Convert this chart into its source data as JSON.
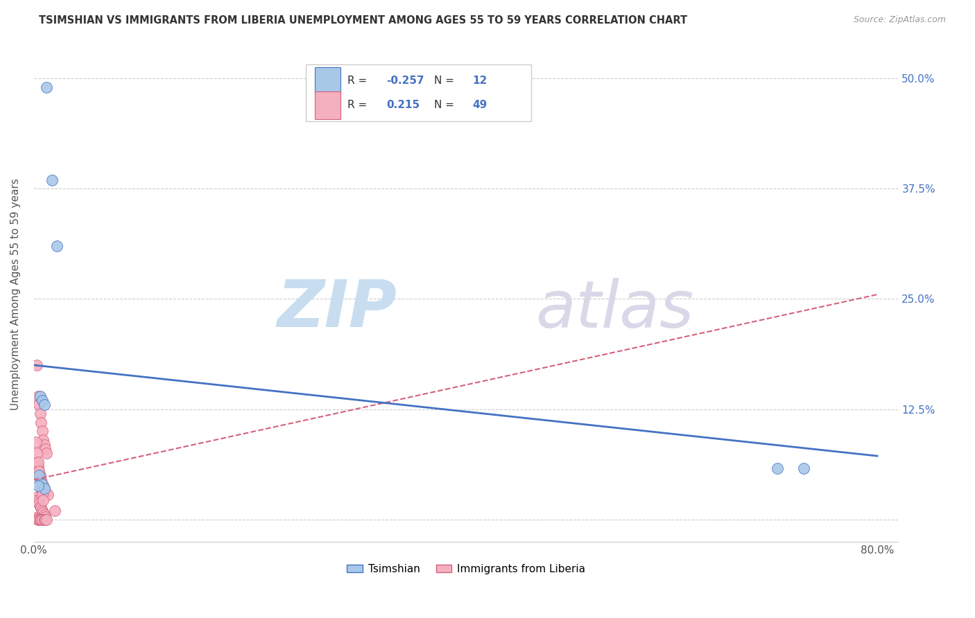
{
  "title": "TSIMSHIAN VS IMMIGRANTS FROM LIBERIA UNEMPLOYMENT AMONG AGES 55 TO 59 YEARS CORRELATION CHART",
  "source": "Source: ZipAtlas.com",
  "ylabel": "Unemployment Among Ages 55 to 59 years",
  "xlim": [
    0.0,
    0.82
  ],
  "ylim": [
    -0.025,
    0.535
  ],
  "xticks": [
    0.0,
    0.1,
    0.2,
    0.3,
    0.4,
    0.5,
    0.6,
    0.7,
    0.8
  ],
  "xticklabels": [
    "0.0%",
    "",
    "",
    "",
    "",
    "",
    "",
    "",
    "80.0%"
  ],
  "yticks": [
    0.0,
    0.125,
    0.25,
    0.375,
    0.5
  ],
  "yticklabels_right": [
    "",
    "12.5%",
    "25.0%",
    "37.5%",
    "50.0%"
  ],
  "tsimshian_color": "#a8c8e8",
  "liberia_color": "#f5b0c0",
  "tsimshian_line_color": "#4472c4",
  "liberia_line_color": "#d4607a",
  "background_color": "#ffffff",
  "grid_color": "#cccccc",
  "legend_R1": "-0.257",
  "legend_N1": "12",
  "legend_R2": "0.215",
  "legend_N2": "49",
  "tsimshian_x": [
    0.012,
    0.017,
    0.022,
    0.006,
    0.008,
    0.01,
    0.005,
    0.008,
    0.01,
    0.705,
    0.73,
    0.004
  ],
  "tsimshian_y": [
    0.49,
    0.385,
    0.31,
    0.14,
    0.135,
    0.13,
    0.05,
    0.04,
    0.035,
    0.058,
    0.058,
    0.038
  ],
  "liberia_x": [
    0.003,
    0.004,
    0.005,
    0.006,
    0.007,
    0.008,
    0.009,
    0.01,
    0.011,
    0.012,
    0.003,
    0.004,
    0.005,
    0.006,
    0.007,
    0.008,
    0.009,
    0.01,
    0.011,
    0.013,
    0.002,
    0.003,
    0.004,
    0.005,
    0.006,
    0.007,
    0.008,
    0.009,
    0.01,
    0.011,
    0.002,
    0.003,
    0.004,
    0.005,
    0.006,
    0.007,
    0.008,
    0.01,
    0.011,
    0.012,
    0.002,
    0.003,
    0.004,
    0.005,
    0.006,
    0.007,
    0.008,
    0.009,
    0.02
  ],
  "liberia_y": [
    0.175,
    0.14,
    0.13,
    0.12,
    0.11,
    0.1,
    0.09,
    0.085,
    0.08,
    0.075,
    0.065,
    0.06,
    0.055,
    0.05,
    0.045,
    0.04,
    0.038,
    0.035,
    0.032,
    0.028,
    0.025,
    0.022,
    0.02,
    0.018,
    0.015,
    0.013,
    0.01,
    0.008,
    0.005,
    0.003,
    0.002,
    0.001,
    0.0,
    0.0,
    0.0,
    0.0,
    0.0,
    0.0,
    0.0,
    0.0,
    0.088,
    0.075,
    0.065,
    0.055,
    0.045,
    0.035,
    0.028,
    0.022,
    0.01
  ],
  "ts_line_x0": 0.0,
  "ts_line_x1": 0.8,
  "ts_line_y0": 0.175,
  "ts_line_y1": 0.072,
  "lib_line_x0": 0.0,
  "lib_line_x1": 0.8,
  "lib_line_y0": 0.045,
  "lib_line_y1": 0.255
}
